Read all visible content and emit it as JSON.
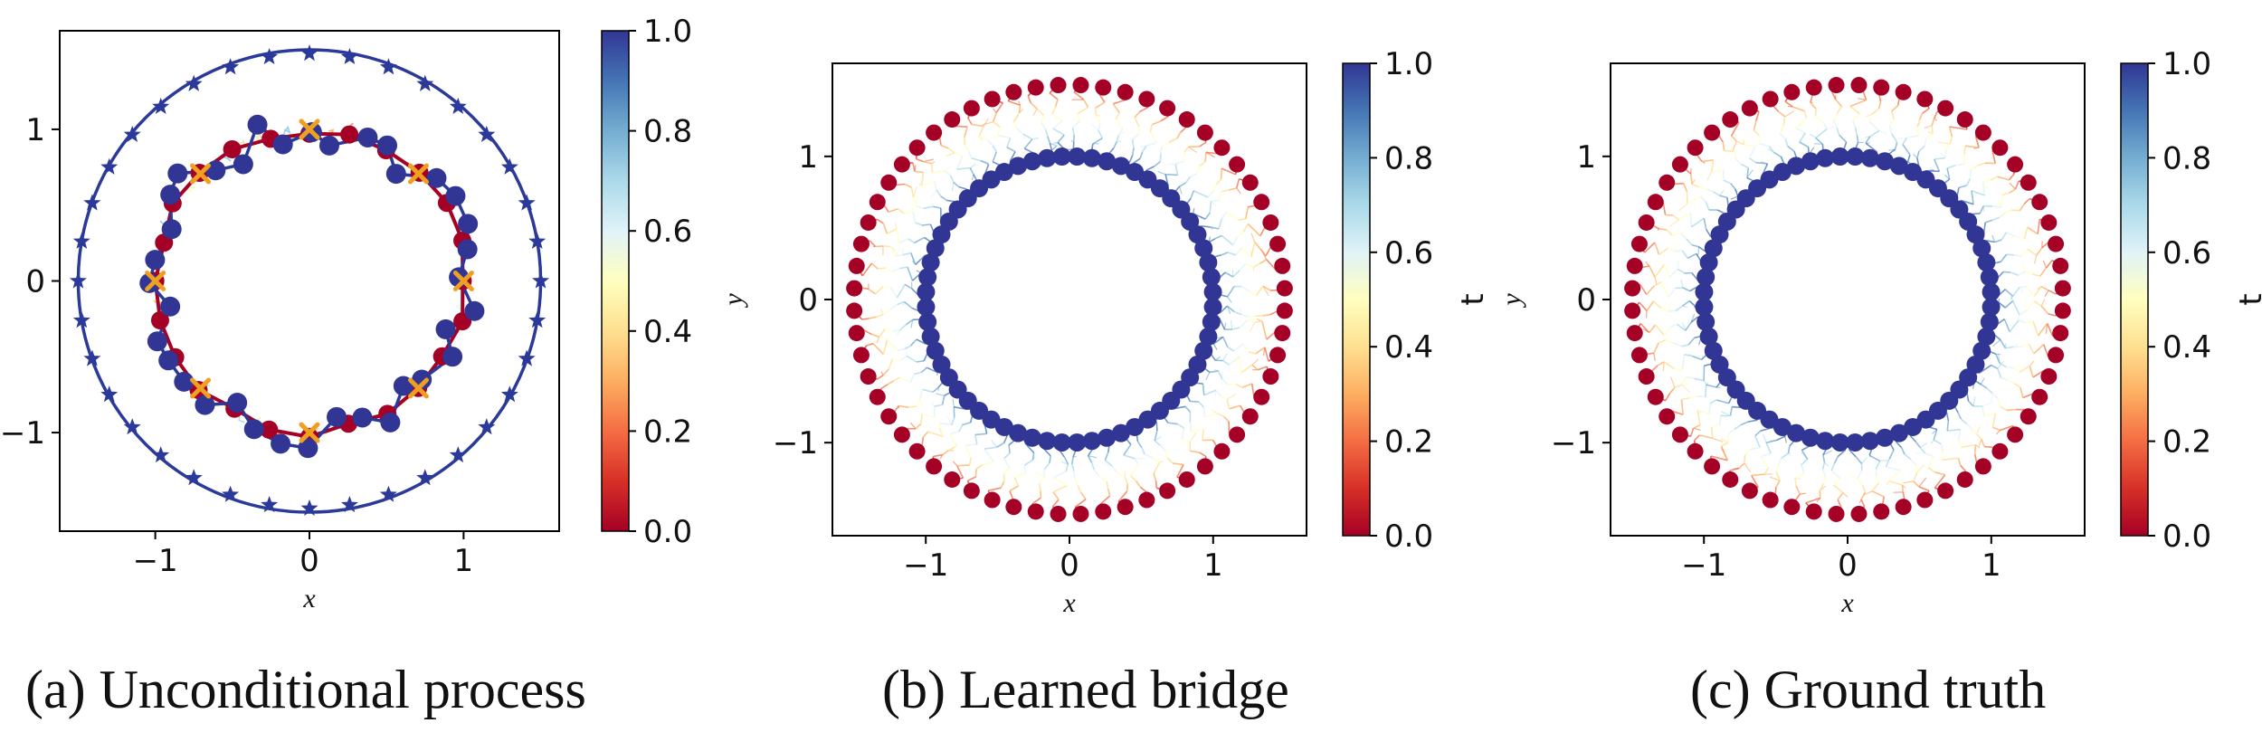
{
  "captions": {
    "a": "(a) Unconditional process",
    "b": "(b) Learned bridge",
    "c": "(c) Ground truth"
  },
  "colormap": {
    "name": "RdYlBu",
    "stops": [
      "#a50026",
      "#d73027",
      "#f46d43",
      "#fdae61",
      "#fee090",
      "#ffffbf",
      "#e0f3f8",
      "#abd9e9",
      "#74add1",
      "#4575b4",
      "#313695"
    ]
  },
  "colors": {
    "line": "#2b3a9a",
    "start": "#b2182b",
    "end": "#3a4aa6",
    "marker_x": "#f0a020"
  },
  "chart_data": [
    {
      "type": "scatter",
      "id": "a",
      "xlabel": "x",
      "ylabel": "",
      "xlim": [
        -1.62,
        1.62
      ],
      "ylim": [
        -1.65,
        1.65
      ],
      "xticks": [
        -1,
        0,
        1
      ],
      "xtick_labels": [
        "−1",
        "0",
        "1"
      ],
      "yticks": [
        -1,
        0,
        1
      ],
      "ytick_labels": [
        "−1",
        "0",
        "1"
      ],
      "colorbar": {
        "label": "",
        "range": [
          0.0,
          1.0
        ],
        "ticks": [
          0.0,
          0.2,
          0.4,
          0.6,
          0.8,
          1.0
        ],
        "tick_labels": [
          "0.0",
          "0.2",
          "0.4",
          "0.6",
          "0.8",
          "1.0"
        ]
      },
      "outer_ring": {
        "radius": 1.5,
        "n_markers": 36,
        "marker": "star"
      },
      "start_ring": {
        "radius": 1.0,
        "n_points": 24,
        "wobble": 0.03,
        "t": 0.0
      },
      "end_ring": {
        "radius": 1.0,
        "n_points": 36,
        "wobble": 0.12,
        "t": 1.0
      },
      "x_markers": {
        "radius": 1.0,
        "n": 8
      }
    },
    {
      "type": "scatter",
      "id": "b",
      "xlabel": "x",
      "ylabel": "y",
      "xlim": [
        -1.65,
        1.65
      ],
      "ylim": [
        -1.65,
        1.65
      ],
      "xticks": [
        -1,
        0,
        1
      ],
      "xtick_labels": [
        "−1",
        "0",
        "1"
      ],
      "yticks": [
        -1,
        0,
        1
      ],
      "ytick_labels": [
        "−1",
        "0",
        "1"
      ],
      "colorbar": {
        "label": "t",
        "range": [
          0.0,
          1.0
        ],
        "ticks": [
          0.0,
          0.2,
          0.4,
          0.6,
          0.8,
          1.0
        ],
        "tick_labels": [
          "0.0",
          "0.2",
          "0.4",
          "0.6",
          "0.8",
          "1.0"
        ]
      },
      "start_ring": {
        "radius": 1.5,
        "n_points": 60,
        "t": 0.0
      },
      "end_ring": {
        "radius": 1.0,
        "n_points": 60,
        "t": 1.0
      },
      "paths": {
        "n": 60
      }
    },
    {
      "type": "scatter",
      "id": "c",
      "xlabel": "x",
      "ylabel": "y",
      "xlim": [
        -1.65,
        1.65
      ],
      "ylim": [
        -1.65,
        1.65
      ],
      "xticks": [
        -1,
        0,
        1
      ],
      "xtick_labels": [
        "−1",
        "0",
        "1"
      ],
      "yticks": [
        -1,
        0,
        1
      ],
      "ytick_labels": [
        "−1",
        "0",
        "1"
      ],
      "colorbar": {
        "label": "t",
        "range": [
          0.0,
          1.0
        ],
        "ticks": [
          0.0,
          0.2,
          0.4,
          0.6,
          0.8,
          1.0
        ],
        "tick_labels": [
          "0.0",
          "0.2",
          "0.4",
          "0.6",
          "0.8",
          "1.0"
        ]
      },
      "start_ring": {
        "radius": 1.5,
        "n_points": 60,
        "t": 0.0
      },
      "end_ring": {
        "radius": 1.0,
        "n_points": 60,
        "t": 1.0
      },
      "paths": {
        "n": 60
      }
    }
  ]
}
